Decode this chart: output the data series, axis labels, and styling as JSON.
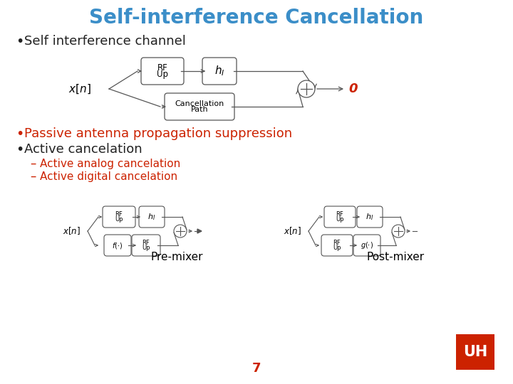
{
  "title": "Self-interference Cancellation",
  "title_color": "#3B8EC8",
  "title_fontsize": 20,
  "background_color": "#FFFFFF",
  "bullet1": "Self interference channel",
  "bullet1_color": "#222222",
  "bullet2_color": "#CC2200",
  "bullet2": "Passive antenna propagation suppression",
  "bullet3": "Active cancelation",
  "bullet3_color": "#222222",
  "sub1_color": "#CC2200",
  "sub1": "Active analog cancelation",
  "sub2_color": "#CC2200",
  "sub2": "Active digital cancelation",
  "label_premixer": "Pre-mixer",
  "label_postmixer": "Post-mixer",
  "page_number": "7",
  "zero_color": "#CC2200"
}
